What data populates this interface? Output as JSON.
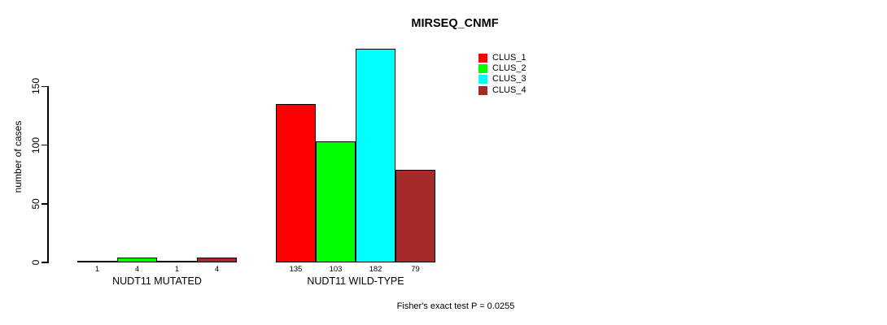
{
  "chart_data": {
    "type": "bar",
    "title": "MIRSEQ_CNMF",
    "ylabel": "number of cases",
    "xlabel": "",
    "yticks": [
      0,
      50,
      100,
      150
    ],
    "ylim": [
      0,
      190
    ],
    "grid": false,
    "background": "#ffffff",
    "axis_color": "#000000",
    "categories": [
      "NUDT11 MUTATED",
      "NUDT11 WILD-TYPE"
    ],
    "series": [
      {
        "name": "CLUS_1",
        "values": [
          1,
          135
        ]
      },
      {
        "name": "CLUS_2",
        "values": [
          4,
          103
        ]
      },
      {
        "name": "CLUS_3",
        "values": [
          1,
          182
        ]
      },
      {
        "name": "CLUS_4",
        "values": [
          4,
          79
        ]
      }
    ],
    "groups": [
      {
        "label": "NUDT11 MUTATED",
        "values": [
          1,
          4,
          1,
          4
        ]
      },
      {
        "label": "NUDT11 WILD-TYPE",
        "values": [
          135,
          103,
          182,
          79
        ]
      }
    ],
    "legend": {
      "position": "inside-top-right",
      "entries": [
        {
          "label": "CLUS_1",
          "color": "#ff0000"
        },
        {
          "label": "CLUS_2",
          "color": "#00ff00"
        },
        {
          "label": "CLUS_3",
          "color": "#00ffff"
        },
        {
          "label": "CLUS_4",
          "color": "#a52a2a"
        }
      ]
    },
    "annotation": "Fisher's exact test P = 0.0255"
  }
}
